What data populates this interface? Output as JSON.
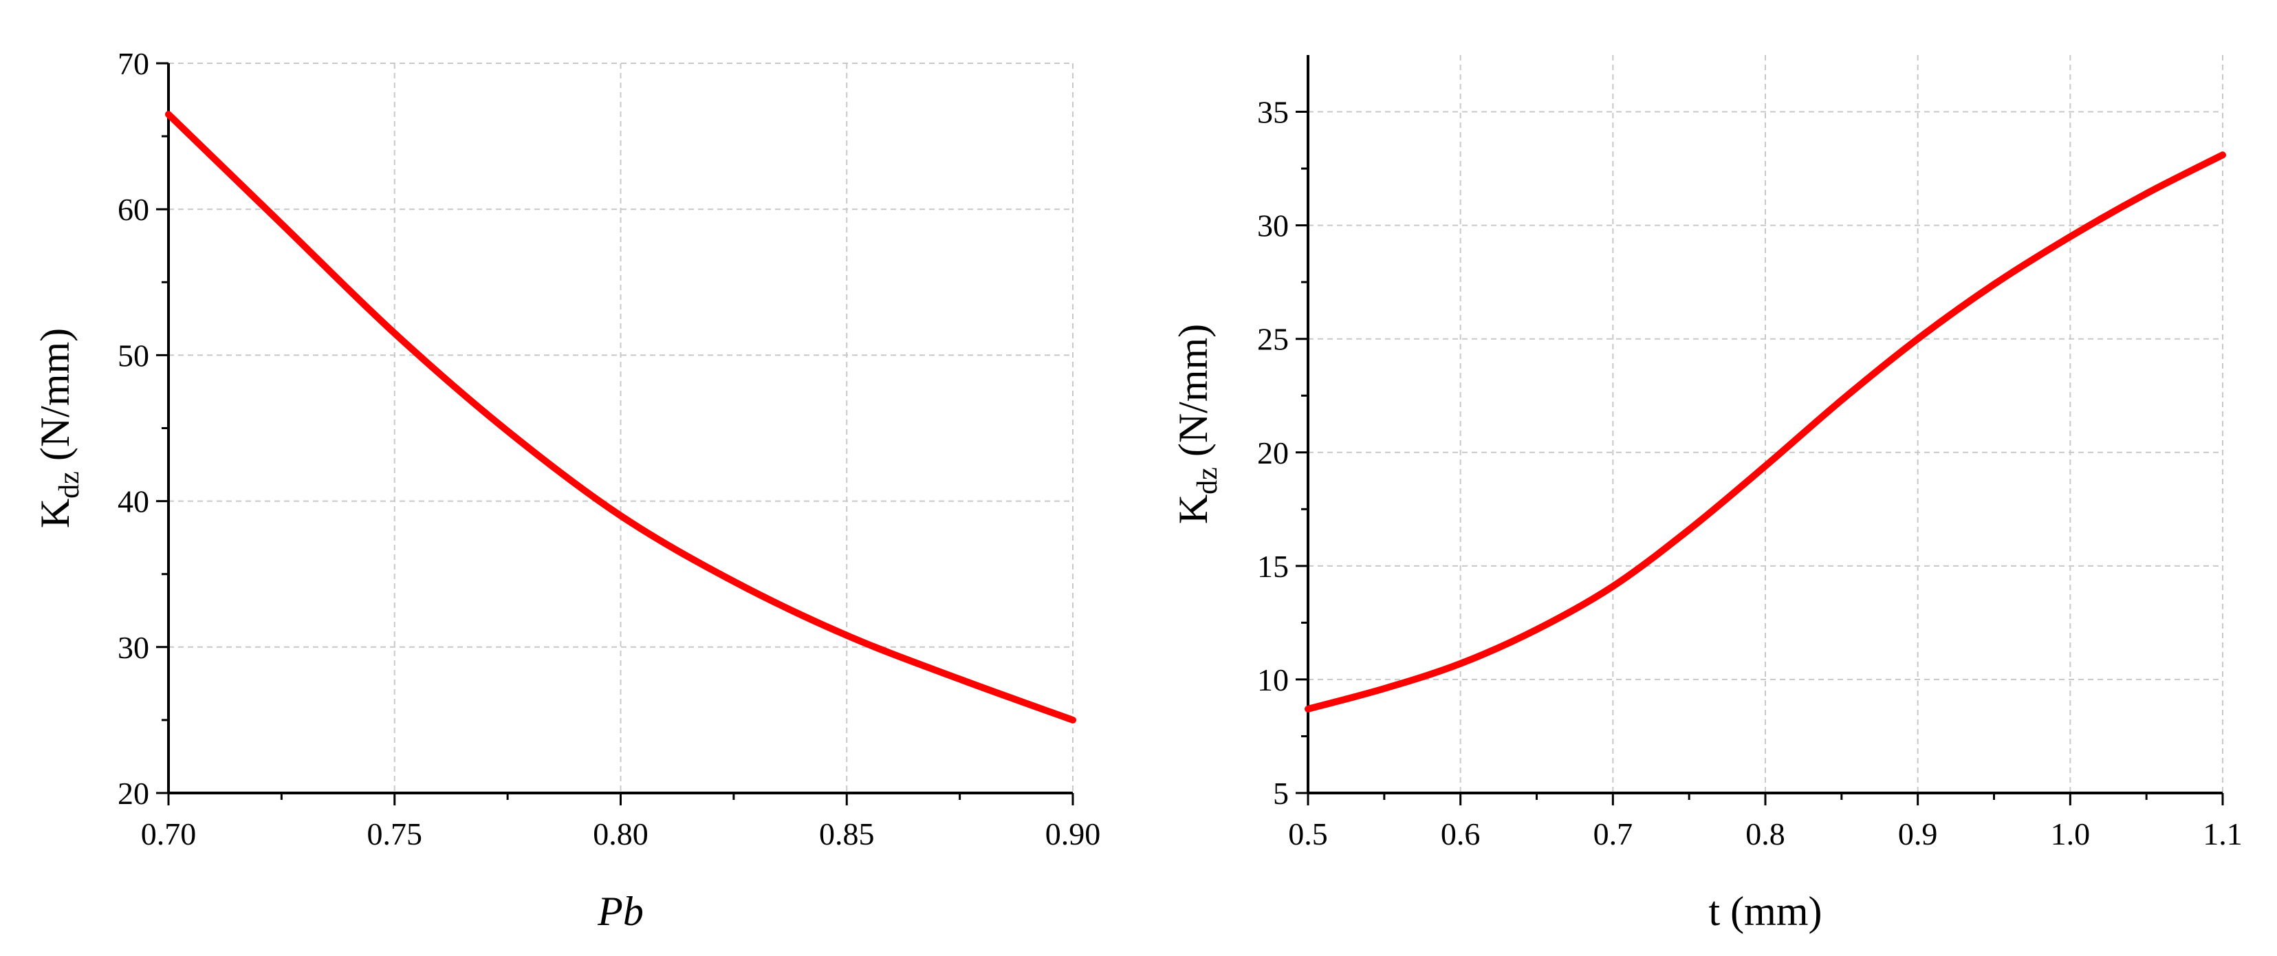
{
  "chart_data": [
    {
      "type": "line",
      "xlabel": "Pb",
      "ylabel_main": "K",
      "ylabel_sub": "dz",
      "ylabel_unit": " (N/mm)",
      "xlim": [
        0.7,
        0.9
      ],
      "ylim": [
        20,
        70
      ],
      "xticks": [
        0.7,
        0.75,
        0.8,
        0.85,
        0.9
      ],
      "xtick_labels": [
        "0.70",
        "0.75",
        "0.80",
        "0.85",
        "0.90"
      ],
      "yticks": [
        20,
        30,
        40,
        50,
        60,
        70
      ],
      "ytick_labels": [
        "20",
        "30",
        "40",
        "50",
        "60",
        "70"
      ],
      "grid": true,
      "series": [
        {
          "color": "#ff0000",
          "x": [
            0.7,
            0.725,
            0.75,
            0.775,
            0.8,
            0.825,
            0.85,
            0.875,
            0.9
          ],
          "y": [
            66.5,
            59.0,
            51.5,
            44.8,
            39.0,
            34.5,
            30.8,
            27.8,
            25.0
          ]
        }
      ]
    },
    {
      "type": "line",
      "xlabel": "t (mm)",
      "ylabel_main": "K",
      "ylabel_sub": "dz",
      "ylabel_unit": " (N/mm)",
      "xlim": [
        0.5,
        1.1
      ],
      "ylim": [
        5,
        37.5
      ],
      "xticks": [
        0.5,
        0.6,
        0.7,
        0.8,
        0.9,
        1.0,
        1.1
      ],
      "xtick_labels": [
        "0.5",
        "0.6",
        "0.7",
        "0.8",
        "0.9",
        "1.0",
        "1.1"
      ],
      "yticks": [
        5,
        10,
        15,
        20,
        25,
        30,
        35
      ],
      "ytick_labels": [
        "5",
        "10",
        "15",
        "20",
        "25",
        "30",
        "35"
      ],
      "grid": true,
      "series": [
        {
          "color": "#ff0000",
          "x": [
            0.5,
            0.55,
            0.6,
            0.65,
            0.7,
            0.75,
            0.8,
            0.85,
            0.9,
            0.95,
            1.0,
            1.05,
            1.1
          ],
          "y": [
            8.7,
            9.6,
            10.7,
            12.2,
            14.1,
            16.6,
            19.4,
            22.3,
            25.0,
            27.4,
            29.5,
            31.4,
            33.1
          ]
        }
      ]
    }
  ]
}
